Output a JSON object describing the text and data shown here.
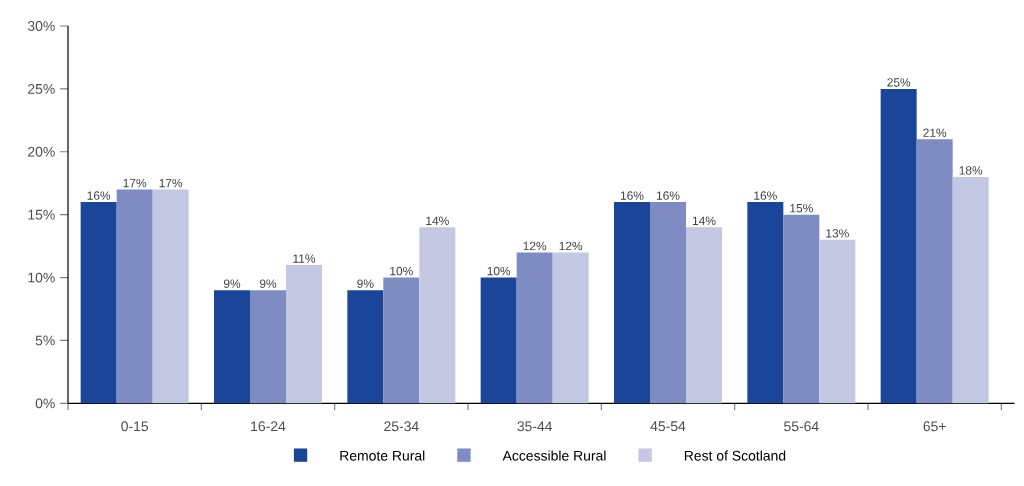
{
  "chart_data": {
    "type": "bar",
    "categories": [
      "0-15",
      "16-24",
      "25-34",
      "35-44",
      "45-54",
      "55-64",
      "65+"
    ],
    "series": [
      {
        "name": "Remote Rural",
        "color": "#1a4599",
        "values": [
          16,
          9,
          9,
          10,
          16,
          16,
          25
        ],
        "value_labels": [
          "16%",
          "9%",
          "9%",
          "10%",
          "16%",
          "16%",
          "25%"
        ]
      },
      {
        "name": "Accessible Rural",
        "color": "#7f8bc3",
        "values": [
          17,
          9,
          10,
          12,
          16,
          15,
          21
        ],
        "value_labels": [
          "17%",
          "9%",
          "10%",
          "12%",
          "16%",
          "15%",
          "21%"
        ]
      },
      {
        "name": "Rest of Scotland",
        "color": "#c5c8e3",
        "values": [
          17,
          11,
          14,
          12,
          14,
          13,
          18
        ],
        "value_labels": [
          "17%",
          "11%",
          "14%",
          "12%",
          "14%",
          "13%",
          "18%"
        ]
      }
    ],
    "ylim": [
      0,
      30
    ],
    "yticks": [
      {
        "value": 0,
        "label": "0%"
      },
      {
        "value": 5,
        "label": "5%"
      },
      {
        "value": 10,
        "label": "10%"
      },
      {
        "value": 15,
        "label": "15%"
      },
      {
        "value": 20,
        "label": "20%"
      },
      {
        "value": 25,
        "label": "25%"
      },
      {
        "value": 30,
        "label": "30%"
      }
    ],
    "grid": false,
    "legend": "bottom"
  }
}
